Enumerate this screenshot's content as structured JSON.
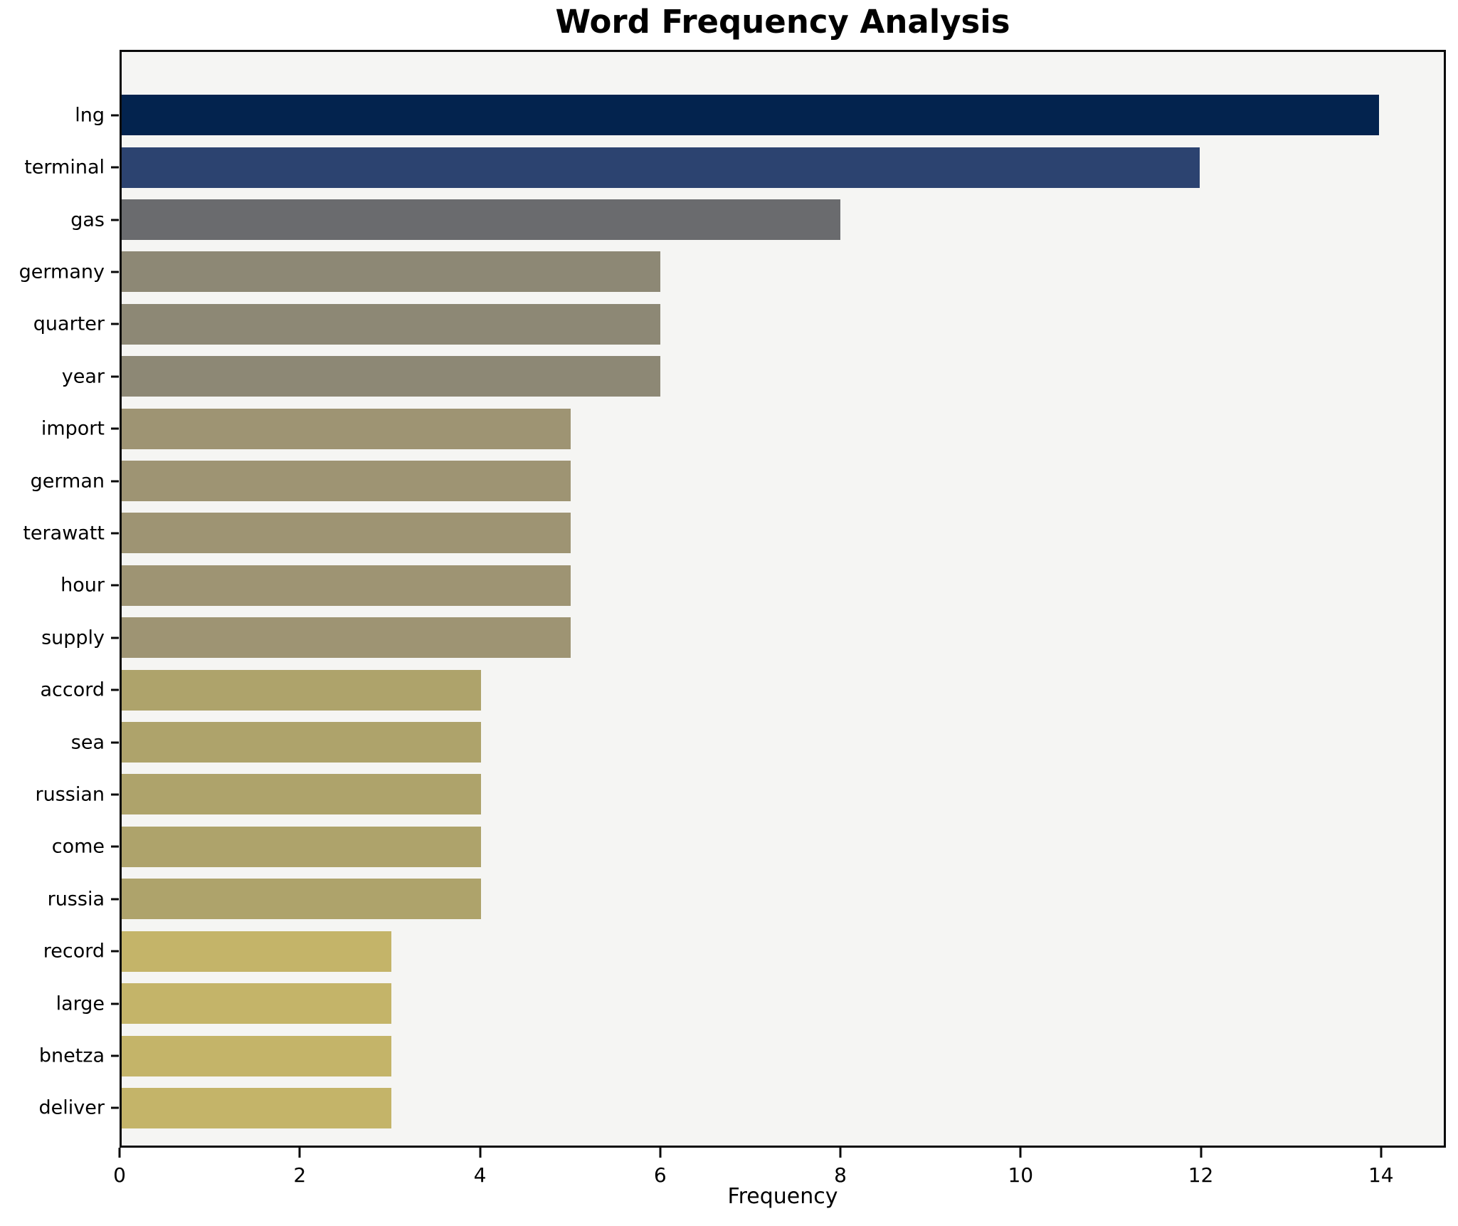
{
  "title": "Word Frequency Analysis",
  "xlabel": "Frequency",
  "chart_data": {
    "type": "bar",
    "orientation": "horizontal",
    "title": "Word Frequency Analysis",
    "xlabel": "Frequency",
    "ylabel": "",
    "categories": [
      "lng",
      "terminal",
      "gas",
      "germany",
      "quarter",
      "year",
      "import",
      "german",
      "terawatt",
      "hour",
      "supply",
      "accord",
      "sea",
      "russian",
      "come",
      "russia",
      "record",
      "large",
      "bnetza",
      "deliver"
    ],
    "values": [
      14,
      12,
      8,
      6,
      6,
      6,
      5,
      5,
      5,
      5,
      5,
      4,
      4,
      4,
      4,
      4,
      3,
      3,
      3,
      3
    ],
    "bar_colors": [
      "#03234e",
      "#2c4370",
      "#6a6b6e",
      "#8d8875",
      "#8d8875",
      "#8d8875",
      "#9e9473",
      "#9e9473",
      "#9e9473",
      "#9e9473",
      "#9e9473",
      "#aea36b",
      "#aea36b",
      "#aea36b",
      "#aea36b",
      "#aea36b",
      "#c4b469",
      "#c4b469",
      "#c4b469",
      "#c4b469"
    ],
    "xticks": [
      0,
      2,
      4,
      6,
      8,
      10,
      12,
      14
    ],
    "xlim": [
      0,
      14.72
    ],
    "grid": false,
    "legend_position": "none",
    "plot_background": "#f5f5f3",
    "figure_background": "#ffffff",
    "spine_color": "#0a0a0a"
  }
}
